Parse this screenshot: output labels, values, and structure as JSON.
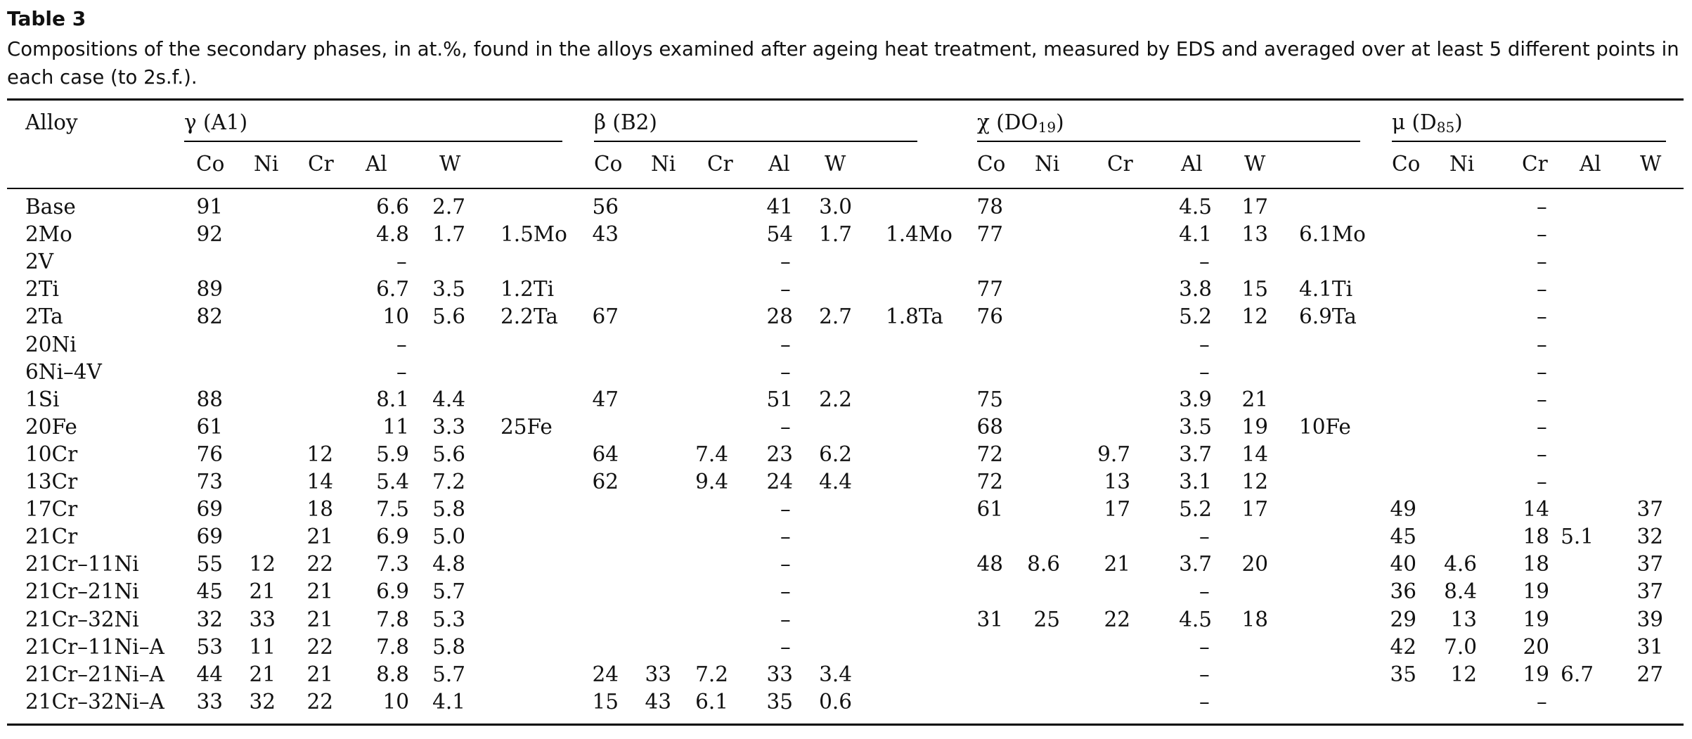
{
  "title": "Table 3",
  "caption": "Compositions of the secondary phases, in at.%, found in the alloys examined after ageing heat treatment, measured by EDS and averaged over at least 5 different points in each case (to 2s.f.).",
  "table": {
    "alloy_header": "Alloy",
    "groups": [
      {
        "label": "γ (A1)",
        "base": "γ (A1)",
        "sub": ""
      },
      {
        "label": "β (B2)",
        "base": "β (B2)",
        "sub": ""
      },
      {
        "label": "χ (DO19)",
        "base": "χ (DO",
        "sub": "19",
        "tail": ")"
      },
      {
        "label": "μ (D85)",
        "base": "μ (D",
        "sub": "85",
        "tail": ")"
      }
    ],
    "subheaders": [
      "Co",
      "Ni",
      "Cr",
      "Al",
      "W"
    ],
    "rows": [
      {
        "alloy": "Base",
        "g": [
          "91",
          "",
          "",
          "6.6",
          "2.7",
          ""
        ],
        "b": [
          "56",
          "",
          "",
          "41",
          "3.0",
          ""
        ],
        "c": [
          "78",
          "",
          "",
          "4.5",
          "17",
          ""
        ],
        "m": [
          "",
          "",
          "–",
          "",
          ""
        ]
      },
      {
        "alloy": "2Mo",
        "g": [
          "92",
          "",
          "",
          "4.8",
          "1.7",
          "1.5Mo"
        ],
        "b": [
          "43",
          "",
          "",
          "54",
          "1.7",
          "1.4Mo"
        ],
        "c": [
          "77",
          "",
          "",
          "4.1",
          "13",
          "6.1Mo"
        ],
        "m": [
          "",
          "",
          "–",
          "",
          ""
        ]
      },
      {
        "alloy": "2V",
        "g": [
          "",
          "",
          "",
          "–",
          "",
          ""
        ],
        "b": [
          "",
          "",
          "",
          "–",
          "",
          ""
        ],
        "c": [
          "",
          "",
          "",
          "–",
          "",
          ""
        ],
        "m": [
          "",
          "",
          "–",
          "",
          ""
        ]
      },
      {
        "alloy": "2Ti",
        "g": [
          "89",
          "",
          "",
          "6.7",
          "3.5",
          "1.2Ti"
        ],
        "b": [
          "",
          "",
          "",
          "–",
          "",
          ""
        ],
        "c": [
          "77",
          "",
          "",
          "3.8",
          "15",
          "4.1Ti"
        ],
        "m": [
          "",
          "",
          "–",
          "",
          ""
        ]
      },
      {
        "alloy": "2Ta",
        "g": [
          "82",
          "",
          "",
          "10",
          "5.6",
          "2.2Ta"
        ],
        "b": [
          "67",
          "",
          "",
          "28",
          "2.7",
          "1.8Ta"
        ],
        "c": [
          "76",
          "",
          "",
          "5.2",
          "12",
          "6.9Ta"
        ],
        "m": [
          "",
          "",
          "–",
          "",
          ""
        ]
      },
      {
        "alloy": "20Ni",
        "g": [
          "",
          "",
          "",
          "–",
          "",
          ""
        ],
        "b": [
          "",
          "",
          "",
          "–",
          "",
          ""
        ],
        "c": [
          "",
          "",
          "",
          "–",
          "",
          ""
        ],
        "m": [
          "",
          "",
          "–",
          "",
          ""
        ]
      },
      {
        "alloy": "6Ni–4V",
        "g": [
          "",
          "",
          "",
          "–",
          "",
          ""
        ],
        "b": [
          "",
          "",
          "",
          "–",
          "",
          ""
        ],
        "c": [
          "",
          "",
          "",
          "–",
          "",
          ""
        ],
        "m": [
          "",
          "",
          "–",
          "",
          ""
        ]
      },
      {
        "alloy": "1Si",
        "g": [
          "88",
          "",
          "",
          "8.1",
          "4.4",
          ""
        ],
        "b": [
          "47",
          "",
          "",
          "51",
          "2.2",
          ""
        ],
        "c": [
          "75",
          "",
          "",
          "3.9",
          "21",
          ""
        ],
        "m": [
          "",
          "",
          "–",
          "",
          ""
        ]
      },
      {
        "alloy": "20Fe",
        "g": [
          "61",
          "",
          "",
          "11",
          "3.3",
          "25Fe"
        ],
        "b": [
          "",
          "",
          "",
          "–",
          "",
          ""
        ],
        "c": [
          "68",
          "",
          "",
          "3.5",
          "19",
          "10Fe"
        ],
        "m": [
          "",
          "",
          "–",
          "",
          ""
        ]
      },
      {
        "alloy": "10Cr",
        "g": [
          "76",
          "",
          "12",
          "5.9",
          "5.6",
          ""
        ],
        "b": [
          "64",
          "",
          "7.4",
          "23",
          "6.2",
          ""
        ],
        "c": [
          "72",
          "",
          "9.7",
          "3.7",
          "14",
          ""
        ],
        "m": [
          "",
          "",
          "–",
          "",
          ""
        ]
      },
      {
        "alloy": "13Cr",
        "g": [
          "73",
          "",
          "14",
          "5.4",
          "7.2",
          ""
        ],
        "b": [
          "62",
          "",
          "9.4",
          "24",
          "4.4",
          ""
        ],
        "c": [
          "72",
          "",
          "13",
          "3.1",
          "12",
          ""
        ],
        "m": [
          "",
          "",
          "–",
          "",
          ""
        ]
      },
      {
        "alloy": "17Cr",
        "g": [
          "69",
          "",
          "18",
          "7.5",
          "5.8",
          ""
        ],
        "b": [
          "",
          "",
          "",
          "–",
          "",
          ""
        ],
        "c": [
          "61",
          "",
          "17",
          "5.2",
          "17",
          ""
        ],
        "m": [
          "49",
          "",
          "14",
          "",
          "37"
        ]
      },
      {
        "alloy": "21Cr",
        "g": [
          "69",
          "",
          "21",
          "6.9",
          "5.0",
          ""
        ],
        "b": [
          "",
          "",
          "",
          "–",
          "",
          ""
        ],
        "c": [
          "",
          "",
          "",
          "–",
          "",
          ""
        ],
        "m": [
          "45",
          "",
          "18",
          "5.1",
          "32"
        ]
      },
      {
        "alloy": "21Cr–11Ni",
        "g": [
          "55",
          "12",
          "22",
          "7.3",
          "4.8",
          ""
        ],
        "b": [
          "",
          "",
          "",
          "–",
          "",
          ""
        ],
        "c": [
          "48",
          "8.6",
          "21",
          "3.7",
          "20",
          ""
        ],
        "m": [
          "40",
          "4.6",
          "18",
          "",
          "37"
        ]
      },
      {
        "alloy": "21Cr–21Ni",
        "g": [
          "45",
          "21",
          "21",
          "6.9",
          "5.7",
          ""
        ],
        "b": [
          "",
          "",
          "",
          "–",
          "",
          ""
        ],
        "c": [
          "",
          "",
          "",
          "–",
          "",
          ""
        ],
        "m": [
          "36",
          "8.4",
          "19",
          "",
          "37"
        ]
      },
      {
        "alloy": "21Cr–32Ni",
        "g": [
          "32",
          "33",
          "21",
          "7.8",
          "5.3",
          ""
        ],
        "b": [
          "",
          "",
          "",
          "–",
          "",
          ""
        ],
        "c": [
          "31",
          "25",
          "22",
          "4.5",
          "18",
          ""
        ],
        "m": [
          "29",
          "13",
          "19",
          "",
          "39"
        ]
      },
      {
        "alloy": "21Cr–11Ni–A",
        "g": [
          "53",
          "11",
          "22",
          "7.8",
          "5.8",
          ""
        ],
        "b": [
          "",
          "",
          "",
          "–",
          "",
          ""
        ],
        "c": [
          "",
          "",
          "",
          "–",
          "",
          ""
        ],
        "m": [
          "42",
          "7.0",
          "20",
          "",
          "31"
        ]
      },
      {
        "alloy": "21Cr–21Ni–A",
        "g": [
          "44",
          "21",
          "21",
          "8.8",
          "5.7",
          ""
        ],
        "b": [
          "24",
          "33",
          "7.2",
          "33",
          "3.4",
          ""
        ],
        "c": [
          "",
          "",
          "",
          "–",
          "",
          ""
        ],
        "m": [
          "35",
          "12",
          "19",
          "6.7",
          "27"
        ]
      },
      {
        "alloy": "21Cr–32Ni–A",
        "g": [
          "33",
          "32",
          "22",
          "10",
          "4.1",
          ""
        ],
        "b": [
          "15",
          "43",
          "6.1",
          "35",
          "0.6",
          ""
        ],
        "c": [
          "",
          "",
          "",
          "–",
          "",
          ""
        ],
        "m": [
          "",
          "",
          "–",
          "",
          ""
        ]
      }
    ]
  }
}
